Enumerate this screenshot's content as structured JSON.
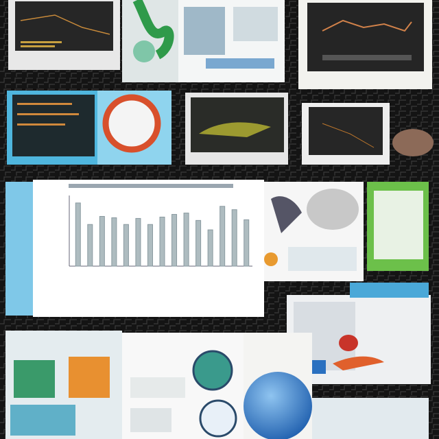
{
  "chart_data": {
    "type": "bar",
    "categories": [
      null,
      null,
      null,
      null,
      null,
      null,
      null,
      null,
      null,
      null,
      null,
      null,
      null,
      null,
      null
    ],
    "values": [
      94,
      62,
      74,
      72,
      62,
      71,
      62,
      73,
      77,
      79,
      68,
      54,
      89,
      84,
      69
    ],
    "color": "#aebcc0",
    "ylim": [
      0,
      100
    ]
  }
}
